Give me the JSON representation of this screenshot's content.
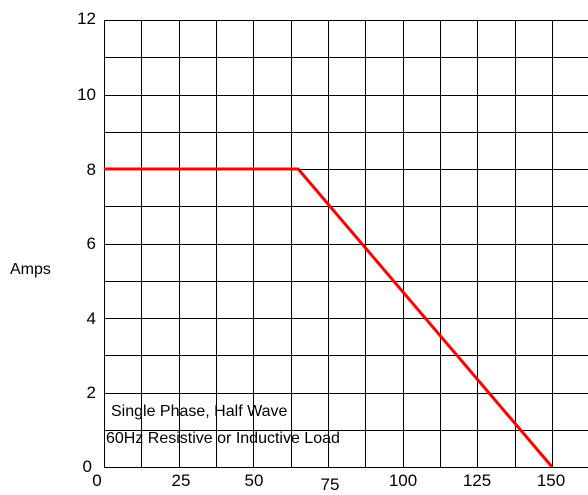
{
  "chart_data": {
    "type": "line",
    "title": "",
    "xlabel": "",
    "ylabel": "Amps",
    "xlim": [
      0,
      162
    ],
    "ylim": [
      0,
      12
    ],
    "x_ticks": [
      "0",
      "25",
      "50",
      "75",
      "100",
      "125",
      "150"
    ],
    "y_ticks": [
      "0",
      "2",
      "4",
      "6",
      "8",
      "10",
      "12"
    ],
    "grid": true,
    "series": [
      {
        "color": "#ff0000",
        "x": [
          0,
          65,
          150
        ],
        "y": [
          8,
          8,
          0
        ]
      }
    ],
    "annotations": [
      "Single Phase, Half Wave",
      "60Hz Resistive or Inductive Load"
    ]
  }
}
